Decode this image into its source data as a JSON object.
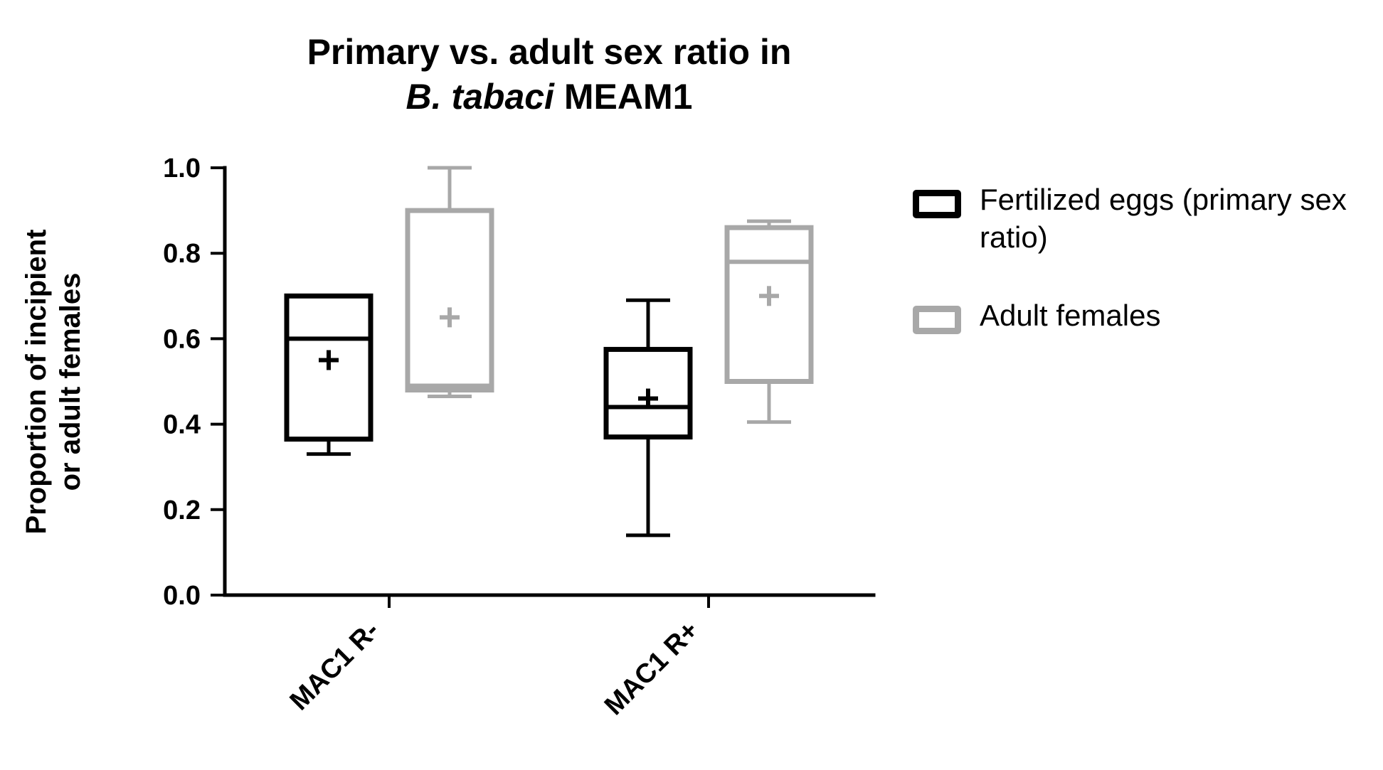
{
  "chart_data": {
    "type": "boxplot",
    "title": "Primary vs. adult sex ratio in B. tabaci MEAM1",
    "title_line1": "Primary vs. adult sex ratio in",
    "title_line2_italic": "B. tabaci",
    "title_line2_rest": "MEAM1",
    "ylabel": "Proportion of incipient or adult females",
    "ylabel_lines": [
      "Proportion of incipient",
      "or adult females"
    ],
    "xlabel": "",
    "categories": [
      "MAC1 R-",
      "MAC1 R+"
    ],
    "ylim": [
      0.0,
      1.0
    ],
    "yticks": [
      0.0,
      0.2,
      0.4,
      0.6,
      0.8,
      1.0
    ],
    "ytick_labels": [
      "0.0",
      "0.2",
      "0.4",
      "0.6",
      "0.8",
      "1.0"
    ],
    "grid": false,
    "legend_position": "right",
    "series": [
      {
        "name": "Fertilized eggs (primary sex ratio)",
        "color": "#000000",
        "boxes": [
          {
            "whisker_low": 0.33,
            "q1": 0.365,
            "median": 0.6,
            "q3": 0.7,
            "whisker_high": 0.7,
            "mean": 0.55
          },
          {
            "whisker_low": 0.14,
            "q1": 0.37,
            "median": 0.44,
            "q3": 0.575,
            "whisker_high": 0.69,
            "mean": 0.46
          }
        ]
      },
      {
        "name": "Adult females",
        "color": "#a8a8a8",
        "boxes": [
          {
            "whisker_low": 0.465,
            "q1": 0.48,
            "median": 0.49,
            "q3": 0.9,
            "whisker_high": 1.0,
            "mean": 0.65
          },
          {
            "whisker_low": 0.405,
            "q1": 0.5,
            "median": 0.78,
            "q3": 0.86,
            "whisker_high": 0.875,
            "mean": 0.7
          }
        ]
      }
    ]
  }
}
